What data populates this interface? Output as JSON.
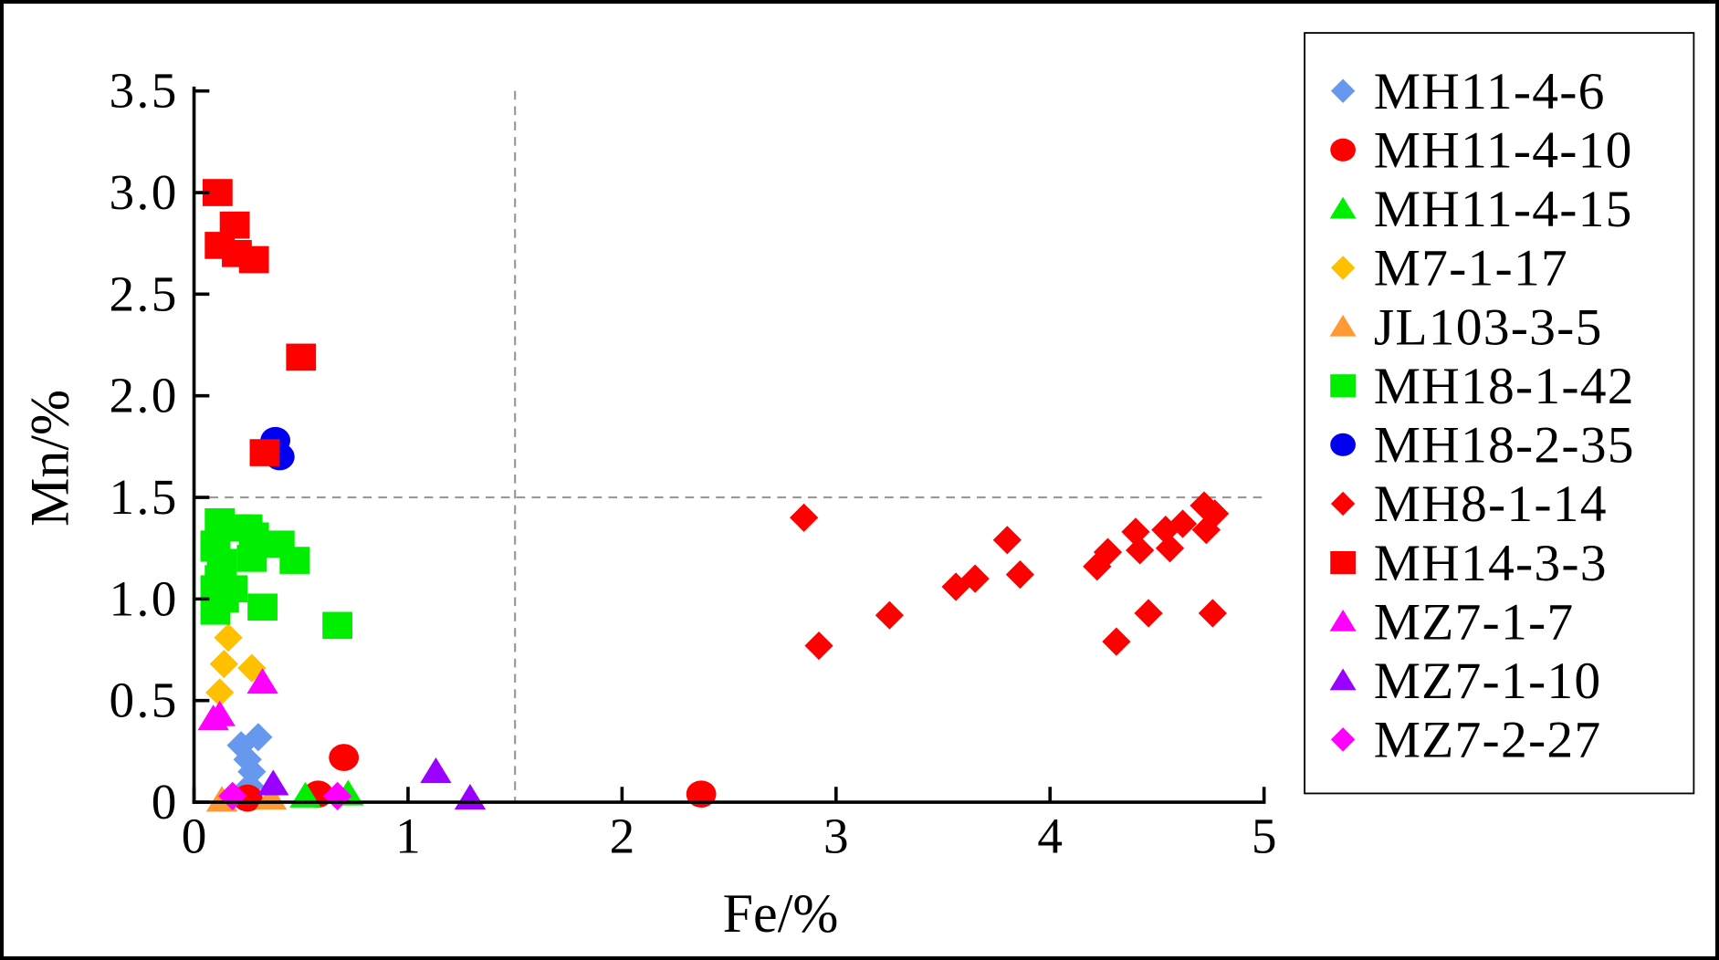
{
  "chart_data": {
    "type": "scatter",
    "title": "",
    "xlabel": "Fe/%",
    "ylabel": "Mn/%",
    "xlim": [
      0,
      5
    ],
    "ylim": [
      0,
      3.5
    ],
    "xticks": [
      "0",
      "1",
      "2",
      "3",
      "4",
      "5"
    ],
    "xtick_values": [
      0,
      1,
      2,
      3,
      4,
      5
    ],
    "yticks": [
      "0",
      "0.5",
      "1.0",
      "1.5",
      "2.0",
      "2.5",
      "3.0",
      "3.5"
    ],
    "ytick_values": [
      0,
      0.5,
      1.0,
      1.5,
      2.0,
      2.5,
      3.0,
      3.5
    ],
    "reference_lines": {
      "x": 1.5,
      "y": 1.5
    },
    "grid": false,
    "legend_placement": "right",
    "series": [
      {
        "name": "MH11-4-6",
        "marker": "diamond",
        "color": "#6699ee",
        "points": [
          [
            0.22,
            0.28
          ],
          [
            0.3,
            0.32
          ],
          [
            0.25,
            0.21
          ],
          [
            0.27,
            0.15
          ],
          [
            0.26,
            0.08
          ]
        ]
      },
      {
        "name": "MH11-4-10",
        "marker": "circle",
        "color": "#ff0000",
        "points": [
          [
            0.25,
            0.02
          ],
          [
            0.58,
            0.04
          ],
          [
            0.7,
            0.22
          ],
          [
            2.37,
            0.04
          ]
        ]
      },
      {
        "name": "MH11-4-15",
        "marker": "triangle",
        "color": "#00ee00",
        "points": [
          [
            0.52,
            0.03
          ],
          [
            0.72,
            0.04
          ]
        ]
      },
      {
        "name": "M7-1-17",
        "marker": "diamond",
        "color": "#ffc000",
        "points": [
          [
            0.16,
            0.81
          ],
          [
            0.14,
            0.68
          ],
          [
            0.27,
            0.66
          ],
          [
            0.12,
            0.54
          ]
        ]
      },
      {
        "name": "JL103-3-5",
        "marker": "triangle",
        "color": "#ff9933",
        "points": [
          [
            0.13,
            0.01
          ],
          [
            0.36,
            0.02
          ]
        ]
      },
      {
        "name": "MH18-1-42",
        "marker": "square",
        "color": "#00ee00",
        "points": [
          [
            0.12,
            1.38
          ],
          [
            0.1,
            1.27
          ],
          [
            0.2,
            1.35
          ],
          [
            0.25,
            1.35
          ],
          [
            0.28,
            1.31
          ],
          [
            0.4,
            1.27
          ],
          [
            0.47,
            1.19
          ],
          [
            0.27,
            1.2
          ],
          [
            0.13,
            1.18
          ],
          [
            0.12,
            1.1
          ],
          [
            0.18,
            1.05
          ],
          [
            0.1,
            1.05
          ],
          [
            0.1,
            0.94
          ],
          [
            0.32,
            0.96
          ],
          [
            0.67,
            0.87
          ],
          [
            0.14,
            1.0
          ],
          [
            0.1,
            1.25
          ]
        ]
      },
      {
        "name": "MH18-2-35",
        "marker": "circle",
        "color": "#0000ee",
        "points": [
          [
            0.38,
            1.78
          ],
          [
            0.4,
            1.7
          ]
        ]
      },
      {
        "name": "MH8-1-14",
        "marker": "diamond",
        "color": "#ff0000",
        "points": [
          [
            2.85,
            1.4
          ],
          [
            2.92,
            0.77
          ],
          [
            3.25,
            0.92
          ],
          [
            3.56,
            1.06
          ],
          [
            3.65,
            1.1
          ],
          [
            3.8,
            1.29
          ],
          [
            3.86,
            1.12
          ],
          [
            4.22,
            1.16
          ],
          [
            4.27,
            1.23
          ],
          [
            4.31,
            0.79
          ],
          [
            4.4,
            1.33
          ],
          [
            4.42,
            1.24
          ],
          [
            4.46,
            0.93
          ],
          [
            4.54,
            1.34
          ],
          [
            4.56,
            1.25
          ],
          [
            4.62,
            1.37
          ],
          [
            4.72,
            1.46
          ],
          [
            4.73,
            1.34
          ],
          [
            4.76,
            0.93
          ],
          [
            4.77,
            1.42
          ]
        ]
      },
      {
        "name": "MH14-3-3",
        "marker": "square",
        "color": "#ff0000",
        "points": [
          [
            0.11,
            3.0
          ],
          [
            0.19,
            2.84
          ],
          [
            0.12,
            2.74
          ],
          [
            0.2,
            2.7
          ],
          [
            0.28,
            2.67
          ],
          [
            0.5,
            2.19
          ],
          [
            0.33,
            1.72
          ]
        ]
      },
      {
        "name": "MZ7-1-7",
        "marker": "triangle",
        "color": "#ff00ff",
        "points": [
          [
            0.09,
            0.41
          ],
          [
            0.12,
            0.43
          ],
          [
            0.32,
            0.59
          ]
        ]
      },
      {
        "name": "MZ7-1-10",
        "marker": "triangle",
        "color": "#9900ff",
        "points": [
          [
            0.37,
            0.09
          ],
          [
            1.13,
            0.15
          ],
          [
            1.29,
            0.02
          ]
        ]
      },
      {
        "name": "MZ7-2-27",
        "marker": "diamond",
        "color": "#ff00ff",
        "points": [
          [
            0.18,
            0.03
          ],
          [
            0.67,
            0.03
          ]
        ]
      }
    ]
  }
}
